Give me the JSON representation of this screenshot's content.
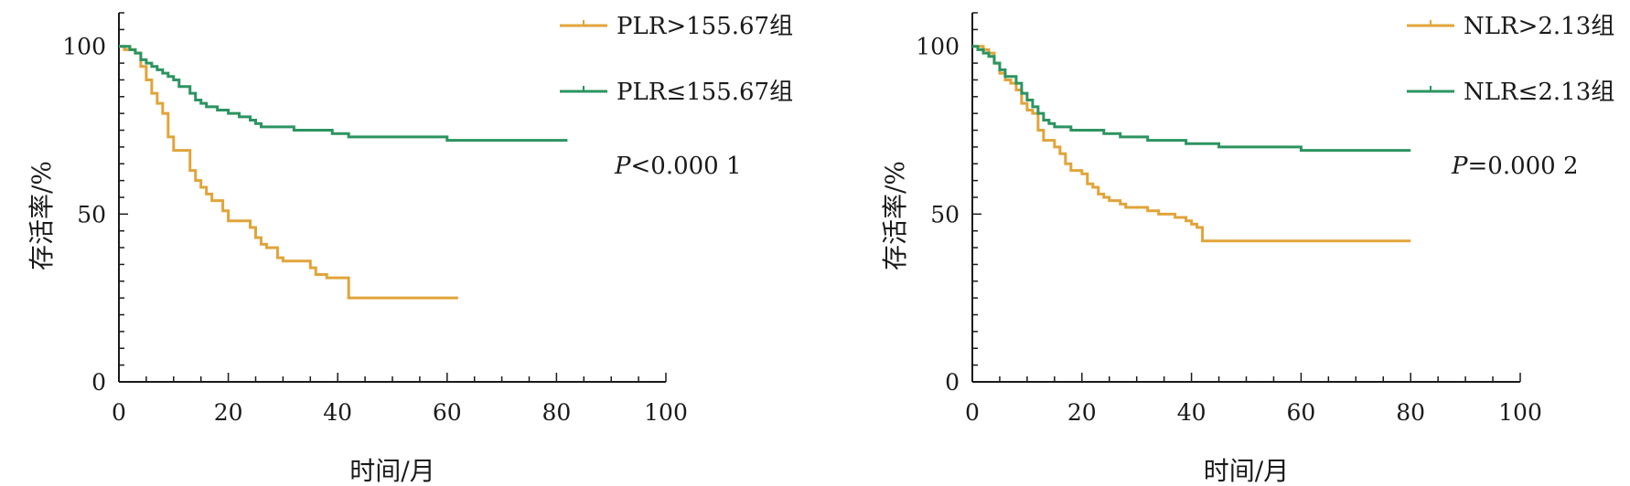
{
  "colors": {
    "high": "#E1A43A",
    "low": "#2B9460",
    "axis": "#1a1a1a"
  },
  "chart_data": [
    {
      "type": "line",
      "xlabel": "时间/月",
      "ylabel": "存活率/%",
      "xlim": [
        0,
        100
      ],
      "ylim": [
        0,
        110
      ],
      "x_ticks": [
        "0",
        "20",
        "40",
        "60",
        "80",
        "100"
      ],
      "y_ticks": [
        "0",
        "50",
        "100"
      ],
      "annotation": {
        "p_italic": "P",
        "p_rest": "<0.000 1"
      },
      "legend_position": "top-right",
      "series": [
        {
          "name": "PLR>155.67组",
          "color_key": "high",
          "points": [
            [
              0,
              100
            ],
            [
              1,
              99
            ],
            [
              3,
              98
            ],
            [
              4,
              94
            ],
            [
              5,
              90
            ],
            [
              6,
              86
            ],
            [
              7,
              83
            ],
            [
              8,
              80
            ],
            [
              9,
              73
            ],
            [
              10,
              69
            ],
            [
              13,
              63
            ],
            [
              14,
              60
            ],
            [
              15,
              58
            ],
            [
              16,
              56
            ],
            [
              17,
              54
            ],
            [
              19,
              51
            ],
            [
              20,
              48
            ],
            [
              24,
              46
            ],
            [
              25,
              43
            ],
            [
              26,
              41
            ],
            [
              27,
              40
            ],
            [
              29,
              37
            ],
            [
              30,
              36
            ],
            [
              35,
              34
            ],
            [
              36,
              32
            ],
            [
              38,
              31
            ],
            [
              42,
              25
            ],
            [
              62,
              25
            ]
          ]
        },
        {
          "name": "PLR≤155.67组",
          "color_key": "low",
          "points": [
            [
              0,
              100
            ],
            [
              2,
              99
            ],
            [
              3,
              98
            ],
            [
              4,
              96
            ],
            [
              5,
              95
            ],
            [
              6,
              94
            ],
            [
              7,
              93
            ],
            [
              8,
              92
            ],
            [
              9,
              91
            ],
            [
              10,
              90
            ],
            [
              11,
              88
            ],
            [
              13,
              86
            ],
            [
              14,
              84
            ],
            [
              15,
              83
            ],
            [
              16,
              82
            ],
            [
              18,
              81
            ],
            [
              20,
              80
            ],
            [
              22,
              79
            ],
            [
              24,
              78
            ],
            [
              25,
              77
            ],
            [
              26,
              76
            ],
            [
              30,
              76
            ],
            [
              32,
              75
            ],
            [
              38,
              75
            ],
            [
              39,
              74
            ],
            [
              41,
              74
            ],
            [
              42,
              73
            ],
            [
              52,
              73
            ],
            [
              60,
              72
            ],
            [
              82,
              72
            ]
          ]
        }
      ]
    },
    {
      "type": "line",
      "xlabel": "时间/月",
      "ylabel": "存活率/%",
      "xlim": [
        0,
        100
      ],
      "ylim": [
        0,
        110
      ],
      "x_ticks": [
        "0",
        "20",
        "40",
        "60",
        "80",
        "100"
      ],
      "y_ticks": [
        "0",
        "50",
        "100"
      ],
      "annotation": {
        "p_italic": "P",
        "p_rest": "=0.000 2"
      },
      "legend_position": "top-right",
      "series": [
        {
          "name": "NLR>2.13组",
          "color_key": "high",
          "points": [
            [
              0,
              100
            ],
            [
              2,
              99
            ],
            [
              3,
              98
            ],
            [
              4,
              95
            ],
            [
              5,
              92
            ],
            [
              6,
              90
            ],
            [
              7,
              89
            ],
            [
              8,
              87
            ],
            [
              9,
              83
            ],
            [
              10,
              81
            ],
            [
              11,
              80
            ],
            [
              12,
              75
            ],
            [
              13,
              72
            ],
            [
              15,
              70
            ],
            [
              16,
              68
            ],
            [
              17,
              65
            ],
            [
              18,
              63
            ],
            [
              20,
              62
            ],
            [
              21,
              59
            ],
            [
              22,
              58
            ],
            [
              23,
              56
            ],
            [
              24,
              55
            ],
            [
              25,
              54
            ],
            [
              27,
              53
            ],
            [
              28,
              52
            ],
            [
              32,
              51
            ],
            [
              34,
              50
            ],
            [
              37,
              49
            ],
            [
              39,
              48
            ],
            [
              40,
              47
            ],
            [
              41,
              46
            ],
            [
              42,
              42
            ],
            [
              80,
              42
            ]
          ]
        },
        {
          "name": "NLR≤2.13组",
          "color_key": "low",
          "points": [
            [
              0,
              100
            ],
            [
              1,
              99
            ],
            [
              2,
              98
            ],
            [
              3,
              97
            ],
            [
              4,
              95
            ],
            [
              5,
              93
            ],
            [
              6,
              91
            ],
            [
              8,
              89
            ],
            [
              9,
              86
            ],
            [
              10,
              84
            ],
            [
              11,
              82
            ],
            [
              12,
              80
            ],
            [
              13,
              78
            ],
            [
              14,
              77
            ],
            [
              15,
              76
            ],
            [
              17,
              76
            ],
            [
              18,
              75
            ],
            [
              20,
              75
            ],
            [
              22,
              75
            ],
            [
              24,
              74
            ],
            [
              26,
              74
            ],
            [
              27,
              73
            ],
            [
              30,
              73
            ],
            [
              32,
              72
            ],
            [
              38,
              72
            ],
            [
              39,
              71
            ],
            [
              41,
              71
            ],
            [
              45,
              70
            ],
            [
              58,
              70
            ],
            [
              60,
              69
            ],
            [
              80,
              69
            ]
          ]
        }
      ]
    }
  ]
}
